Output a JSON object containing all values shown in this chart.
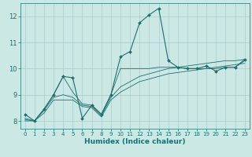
{
  "xlabel": "Humidex (Indice chaleur)",
  "bg_color": "#cce8e4",
  "grid_color": "#aacccc",
  "line_color": "#1a7070",
  "xlim": [
    -0.5,
    23.5
  ],
  "ylim": [
    7.7,
    12.5
  ],
  "xticks": [
    0,
    1,
    2,
    3,
    4,
    5,
    6,
    7,
    8,
    9,
    10,
    11,
    12,
    13,
    14,
    15,
    16,
    17,
    18,
    19,
    20,
    21,
    22,
    23
  ],
  "yticks": [
    8,
    9,
    10,
    11,
    12
  ],
  "series": [
    [
      8.25,
      8.0,
      8.45,
      9.0,
      9.7,
      9.65,
      8.1,
      8.6,
      8.25,
      9.0,
      10.45,
      10.65,
      11.75,
      12.05,
      12.3,
      10.3,
      10.05,
      10.0,
      10.0,
      10.1,
      9.9,
      10.05,
      10.05,
      10.35
    ],
    [
      8.1,
      8.0,
      8.45,
      9.0,
      9.7,
      9.1,
      8.65,
      8.6,
      8.25,
      9.0,
      10.0,
      10.0,
      10.0,
      10.0,
      10.05,
      10.05,
      10.05,
      10.0,
      10.0,
      10.0,
      10.0,
      10.05,
      10.05,
      10.3
    ],
    [
      8.05,
      8.0,
      8.4,
      8.9,
      9.0,
      8.9,
      8.6,
      8.55,
      8.2,
      8.9,
      9.3,
      9.5,
      9.7,
      9.8,
      9.9,
      10.0,
      10.05,
      10.1,
      10.15,
      10.2,
      10.25,
      10.3,
      10.3,
      10.35
    ],
    [
      8.0,
      8.0,
      8.3,
      8.8,
      8.8,
      8.8,
      8.55,
      8.5,
      8.15,
      8.8,
      9.1,
      9.3,
      9.5,
      9.6,
      9.7,
      9.8,
      9.85,
      9.9,
      9.95,
      10.0,
      10.05,
      10.1,
      10.15,
      10.2
    ]
  ]
}
